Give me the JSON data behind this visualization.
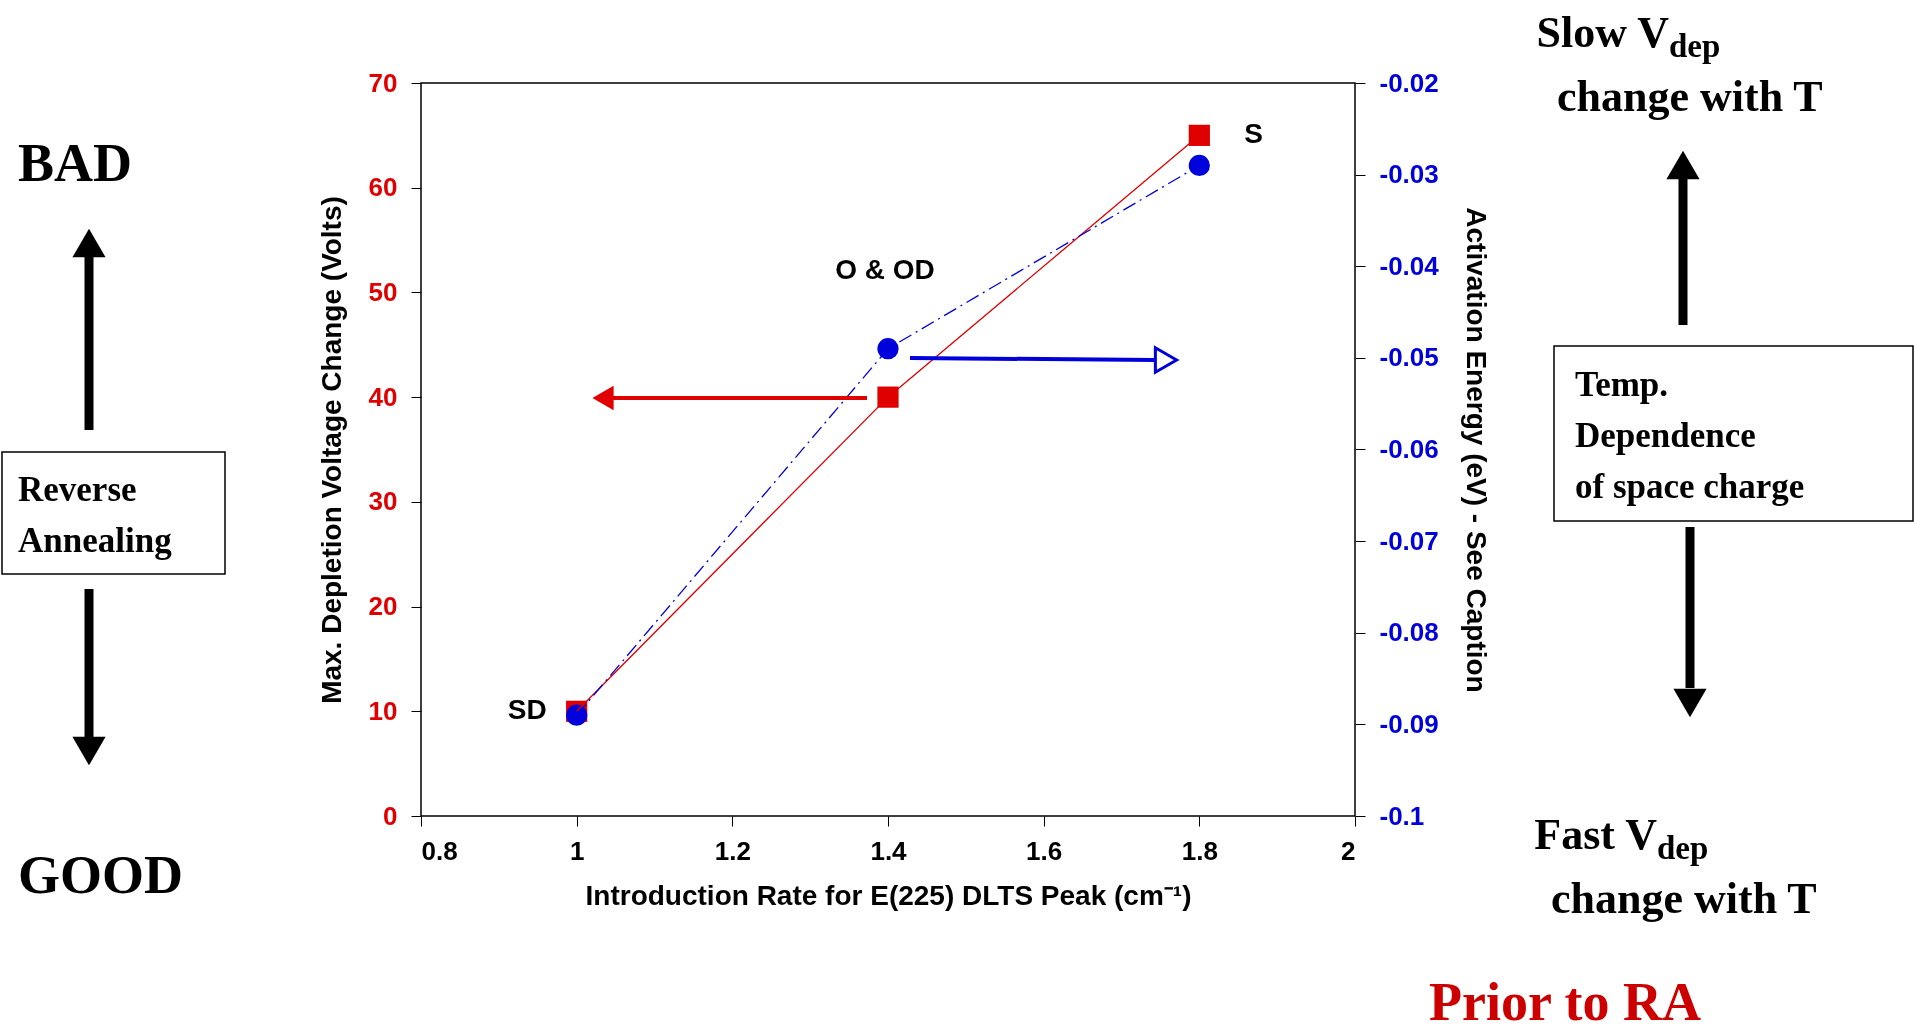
{
  "chart_data": {
    "type": "line",
    "x": [
      1,
      1.4,
      1.8
    ],
    "xlim": [
      0.8,
      2
    ],
    "xticks": [
      0.8,
      1,
      1.2,
      1.4,
      1.6,
      1.8,
      2
    ],
    "ylim": [
      0,
      70
    ],
    "yticks": [
      0,
      10,
      20,
      30,
      40,
      50,
      60,
      70
    ],
    "y2lim": [
      -0.1,
      -0.02
    ],
    "y2ticks": [
      -0.1,
      -0.09,
      -0.08,
      -0.07,
      -0.06,
      -0.05,
      -0.04,
      -0.03,
      -0.02
    ],
    "xlabel": "Introduction Rate for E(225) DLTS Peak (cm⁻¹)",
    "ylabel": "Max. Depletion Voltage Change (Volts)",
    "y2label": "Activation Energy (eV)  - See Caption",
    "series": [
      {
        "color": "#e00000",
        "values": [
          10,
          40,
          65
        ],
        "marker": "square",
        "line_style": "solid"
      },
      {
        "color": "#0000dd",
        "values": [
          -0.089,
          -0.049,
          -0.029
        ],
        "axis": "y2",
        "marker": "circle",
        "line_style": "dashed"
      }
    ],
    "annotations": [
      {
        "text": "SD",
        "x": 1,
        "y": 10
      },
      "O & OD",
      {
        "text": "S",
        "x": 1.8,
        "y": 65
      },
      "BAD",
      "Reverse",
      "Annealing",
      "GOOD",
      "Slow V$_{dep}$",
      "change with T",
      "Temp.",
      "Dependence",
      "of  space charge",
      "Fast V$_{dep}$",
      "change with T",
      "Prior to RA"
    ]
  }
}
